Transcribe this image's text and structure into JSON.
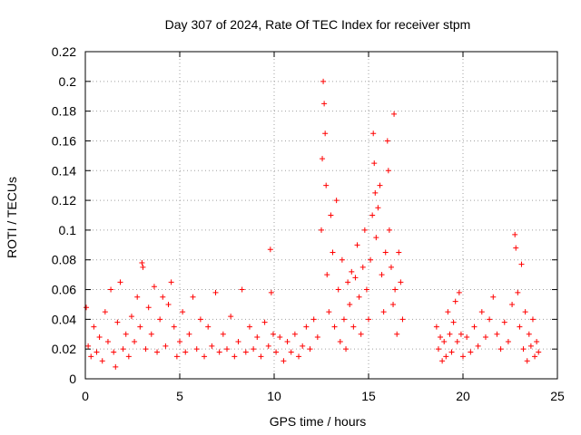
{
  "chart_data": {
    "type": "scatter",
    "title": "Day 307 of 2024, Rate Of TEC Index for receiver stpm",
    "xlabel": "GPS time / hours",
    "ylabel": "ROTI / TECUs",
    "xlim": [
      0,
      25
    ],
    "ylim": [
      0,
      0.22
    ],
    "x_ticks": [
      "0",
      "5",
      "10",
      "15",
      "20",
      "25"
    ],
    "x_tick_values": [
      0,
      5,
      10,
      15,
      20,
      25
    ],
    "y_ticks": [
      "0",
      "0.02",
      "0.04",
      "0.06",
      "0.08",
      "0.1",
      "0.12",
      "0.14",
      "0.16",
      "0.18",
      "0.2",
      "0.22"
    ],
    "y_tick_values": [
      0,
      0.02,
      0.04,
      0.06,
      0.08,
      0.1,
      0.12,
      0.14,
      0.16,
      0.18,
      0.2,
      0.22
    ],
    "grid": true,
    "marker": "plus",
    "color": "#ff0000",
    "series": [
      {
        "points": [
          [
            0.05,
            0.048
          ],
          [
            0.15,
            0.022
          ],
          [
            0.3,
            0.015
          ],
          [
            0.45,
            0.035
          ],
          [
            0.6,
            0.018
          ],
          [
            0.75,
            0.028
          ],
          [
            0.9,
            0.012
          ],
          [
            1.05,
            0.045
          ],
          [
            1.2,
            0.025
          ],
          [
            1.35,
            0.06
          ],
          [
            1.5,
            0.018
          ],
          [
            1.6,
            0.008
          ],
          [
            1.7,
            0.038
          ],
          [
            1.85,
            0.065
          ],
          [
            2.0,
            0.02
          ],
          [
            2.15,
            0.03
          ],
          [
            2.3,
            0.015
          ],
          [
            2.45,
            0.042
          ],
          [
            2.6,
            0.025
          ],
          [
            2.75,
            0.055
          ],
          [
            2.9,
            0.035
          ],
          [
            3.0,
            0.078
          ],
          [
            3.05,
            0.075
          ],
          [
            3.2,
            0.02
          ],
          [
            3.35,
            0.048
          ],
          [
            3.5,
            0.03
          ],
          [
            3.65,
            0.062
          ],
          [
            3.8,
            0.018
          ],
          [
            3.95,
            0.04
          ],
          [
            4.1,
            0.055
          ],
          [
            4.25,
            0.022
          ],
          [
            4.4,
            0.05
          ],
          [
            4.55,
            0.065
          ],
          [
            4.7,
            0.035
          ],
          [
            4.85,
            0.015
          ],
          [
            5.0,
            0.025
          ],
          [
            5.15,
            0.045
          ],
          [
            5.3,
            0.018
          ],
          [
            5.5,
            0.03
          ],
          [
            5.7,
            0.055
          ],
          [
            5.9,
            0.02
          ],
          [
            6.1,
            0.04
          ],
          [
            6.3,
            0.015
          ],
          [
            6.5,
            0.035
          ],
          [
            6.7,
            0.022
          ],
          [
            6.9,
            0.058
          ],
          [
            7.1,
            0.018
          ],
          [
            7.3,
            0.03
          ],
          [
            7.5,
            0.02
          ],
          [
            7.7,
            0.042
          ],
          [
            7.9,
            0.015
          ],
          [
            8.1,
            0.025
          ],
          [
            8.3,
            0.06
          ],
          [
            8.5,
            0.018
          ],
          [
            8.7,
            0.035
          ],
          [
            8.9,
            0.02
          ],
          [
            9.1,
            0.028
          ],
          [
            9.3,
            0.015
          ],
          [
            9.5,
            0.038
          ],
          [
            9.7,
            0.022
          ],
          [
            9.8,
            0.087
          ],
          [
            9.85,
            0.058
          ],
          [
            9.95,
            0.03
          ],
          [
            10.1,
            0.018
          ],
          [
            10.3,
            0.028
          ],
          [
            10.5,
            0.012
          ],
          [
            10.7,
            0.025
          ],
          [
            10.9,
            0.018
          ],
          [
            11.1,
            0.03
          ],
          [
            11.3,
            0.015
          ],
          [
            11.5,
            0.022
          ],
          [
            11.7,
            0.035
          ],
          [
            11.9,
            0.02
          ],
          [
            12.1,
            0.04
          ],
          [
            12.3,
            0.028
          ],
          [
            12.5,
            0.1
          ],
          [
            12.55,
            0.148
          ],
          [
            12.6,
            0.2
          ],
          [
            12.65,
            0.185
          ],
          [
            12.7,
            0.165
          ],
          [
            12.75,
            0.13
          ],
          [
            12.8,
            0.07
          ],
          [
            12.9,
            0.045
          ],
          [
            13.0,
            0.11
          ],
          [
            13.1,
            0.085
          ],
          [
            13.2,
            0.035
          ],
          [
            13.3,
            0.12
          ],
          [
            13.4,
            0.06
          ],
          [
            13.5,
            0.025
          ],
          [
            13.6,
            0.08
          ],
          [
            13.7,
            0.04
          ],
          [
            13.8,
            0.02
          ],
          [
            13.9,
            0.065
          ],
          [
            14.0,
            0.05
          ],
          [
            14.1,
            0.072
          ],
          [
            14.2,
            0.035
          ],
          [
            14.3,
            0.068
          ],
          [
            14.4,
            0.09
          ],
          [
            14.5,
            0.055
          ],
          [
            14.6,
            0.03
          ],
          [
            14.7,
            0.075
          ],
          [
            14.8,
            0.1
          ],
          [
            14.9,
            0.06
          ],
          [
            15.0,
            0.04
          ],
          [
            15.1,
            0.08
          ],
          [
            15.2,
            0.11
          ],
          [
            15.25,
            0.165
          ],
          [
            15.3,
            0.145
          ],
          [
            15.35,
            0.125
          ],
          [
            15.4,
            0.095
          ],
          [
            15.5,
            0.115
          ],
          [
            15.6,
            0.13
          ],
          [
            15.7,
            0.07
          ],
          [
            15.8,
            0.045
          ],
          [
            15.9,
            0.085
          ],
          [
            16.0,
            0.16
          ],
          [
            16.05,
            0.14
          ],
          [
            16.1,
            0.1
          ],
          [
            16.2,
            0.075
          ],
          [
            16.3,
            0.05
          ],
          [
            16.35,
            0.178
          ],
          [
            16.4,
            0.06
          ],
          [
            16.5,
            0.03
          ],
          [
            16.6,
            0.085
          ],
          [
            16.7,
            0.065
          ],
          [
            16.8,
            0.04
          ],
          [
            18.6,
            0.035
          ],
          [
            18.7,
            0.02
          ],
          [
            18.8,
            0.028
          ],
          [
            18.9,
            0.012
          ],
          [
            19.0,
            0.025
          ],
          [
            19.1,
            0.015
          ],
          [
            19.2,
            0.045
          ],
          [
            19.3,
            0.03
          ],
          [
            19.4,
            0.018
          ],
          [
            19.5,
            0.038
          ],
          [
            19.6,
            0.052
          ],
          [
            19.7,
            0.025
          ],
          [
            19.8,
            0.058
          ],
          [
            19.9,
            0.03
          ],
          [
            20.0,
            0.015
          ],
          [
            20.2,
            0.028
          ],
          [
            20.4,
            0.018
          ],
          [
            20.6,
            0.035
          ],
          [
            20.8,
            0.022
          ],
          [
            21.0,
            0.045
          ],
          [
            21.2,
            0.028
          ],
          [
            21.4,
            0.04
          ],
          [
            21.6,
            0.055
          ],
          [
            21.8,
            0.03
          ],
          [
            22.0,
            0.02
          ],
          [
            22.2,
            0.038
          ],
          [
            22.4,
            0.025
          ],
          [
            22.6,
            0.05
          ],
          [
            22.75,
            0.097
          ],
          [
            22.8,
            0.088
          ],
          [
            22.9,
            0.058
          ],
          [
            23.0,
            0.035
          ],
          [
            23.1,
            0.077
          ],
          [
            23.2,
            0.02
          ],
          [
            23.3,
            0.045
          ],
          [
            23.4,
            0.012
          ],
          [
            23.5,
            0.03
          ],
          [
            23.6,
            0.022
          ],
          [
            23.7,
            0.04
          ],
          [
            23.8,
            0.015
          ],
          [
            23.9,
            0.025
          ],
          [
            24.0,
            0.018
          ]
        ]
      }
    ]
  }
}
